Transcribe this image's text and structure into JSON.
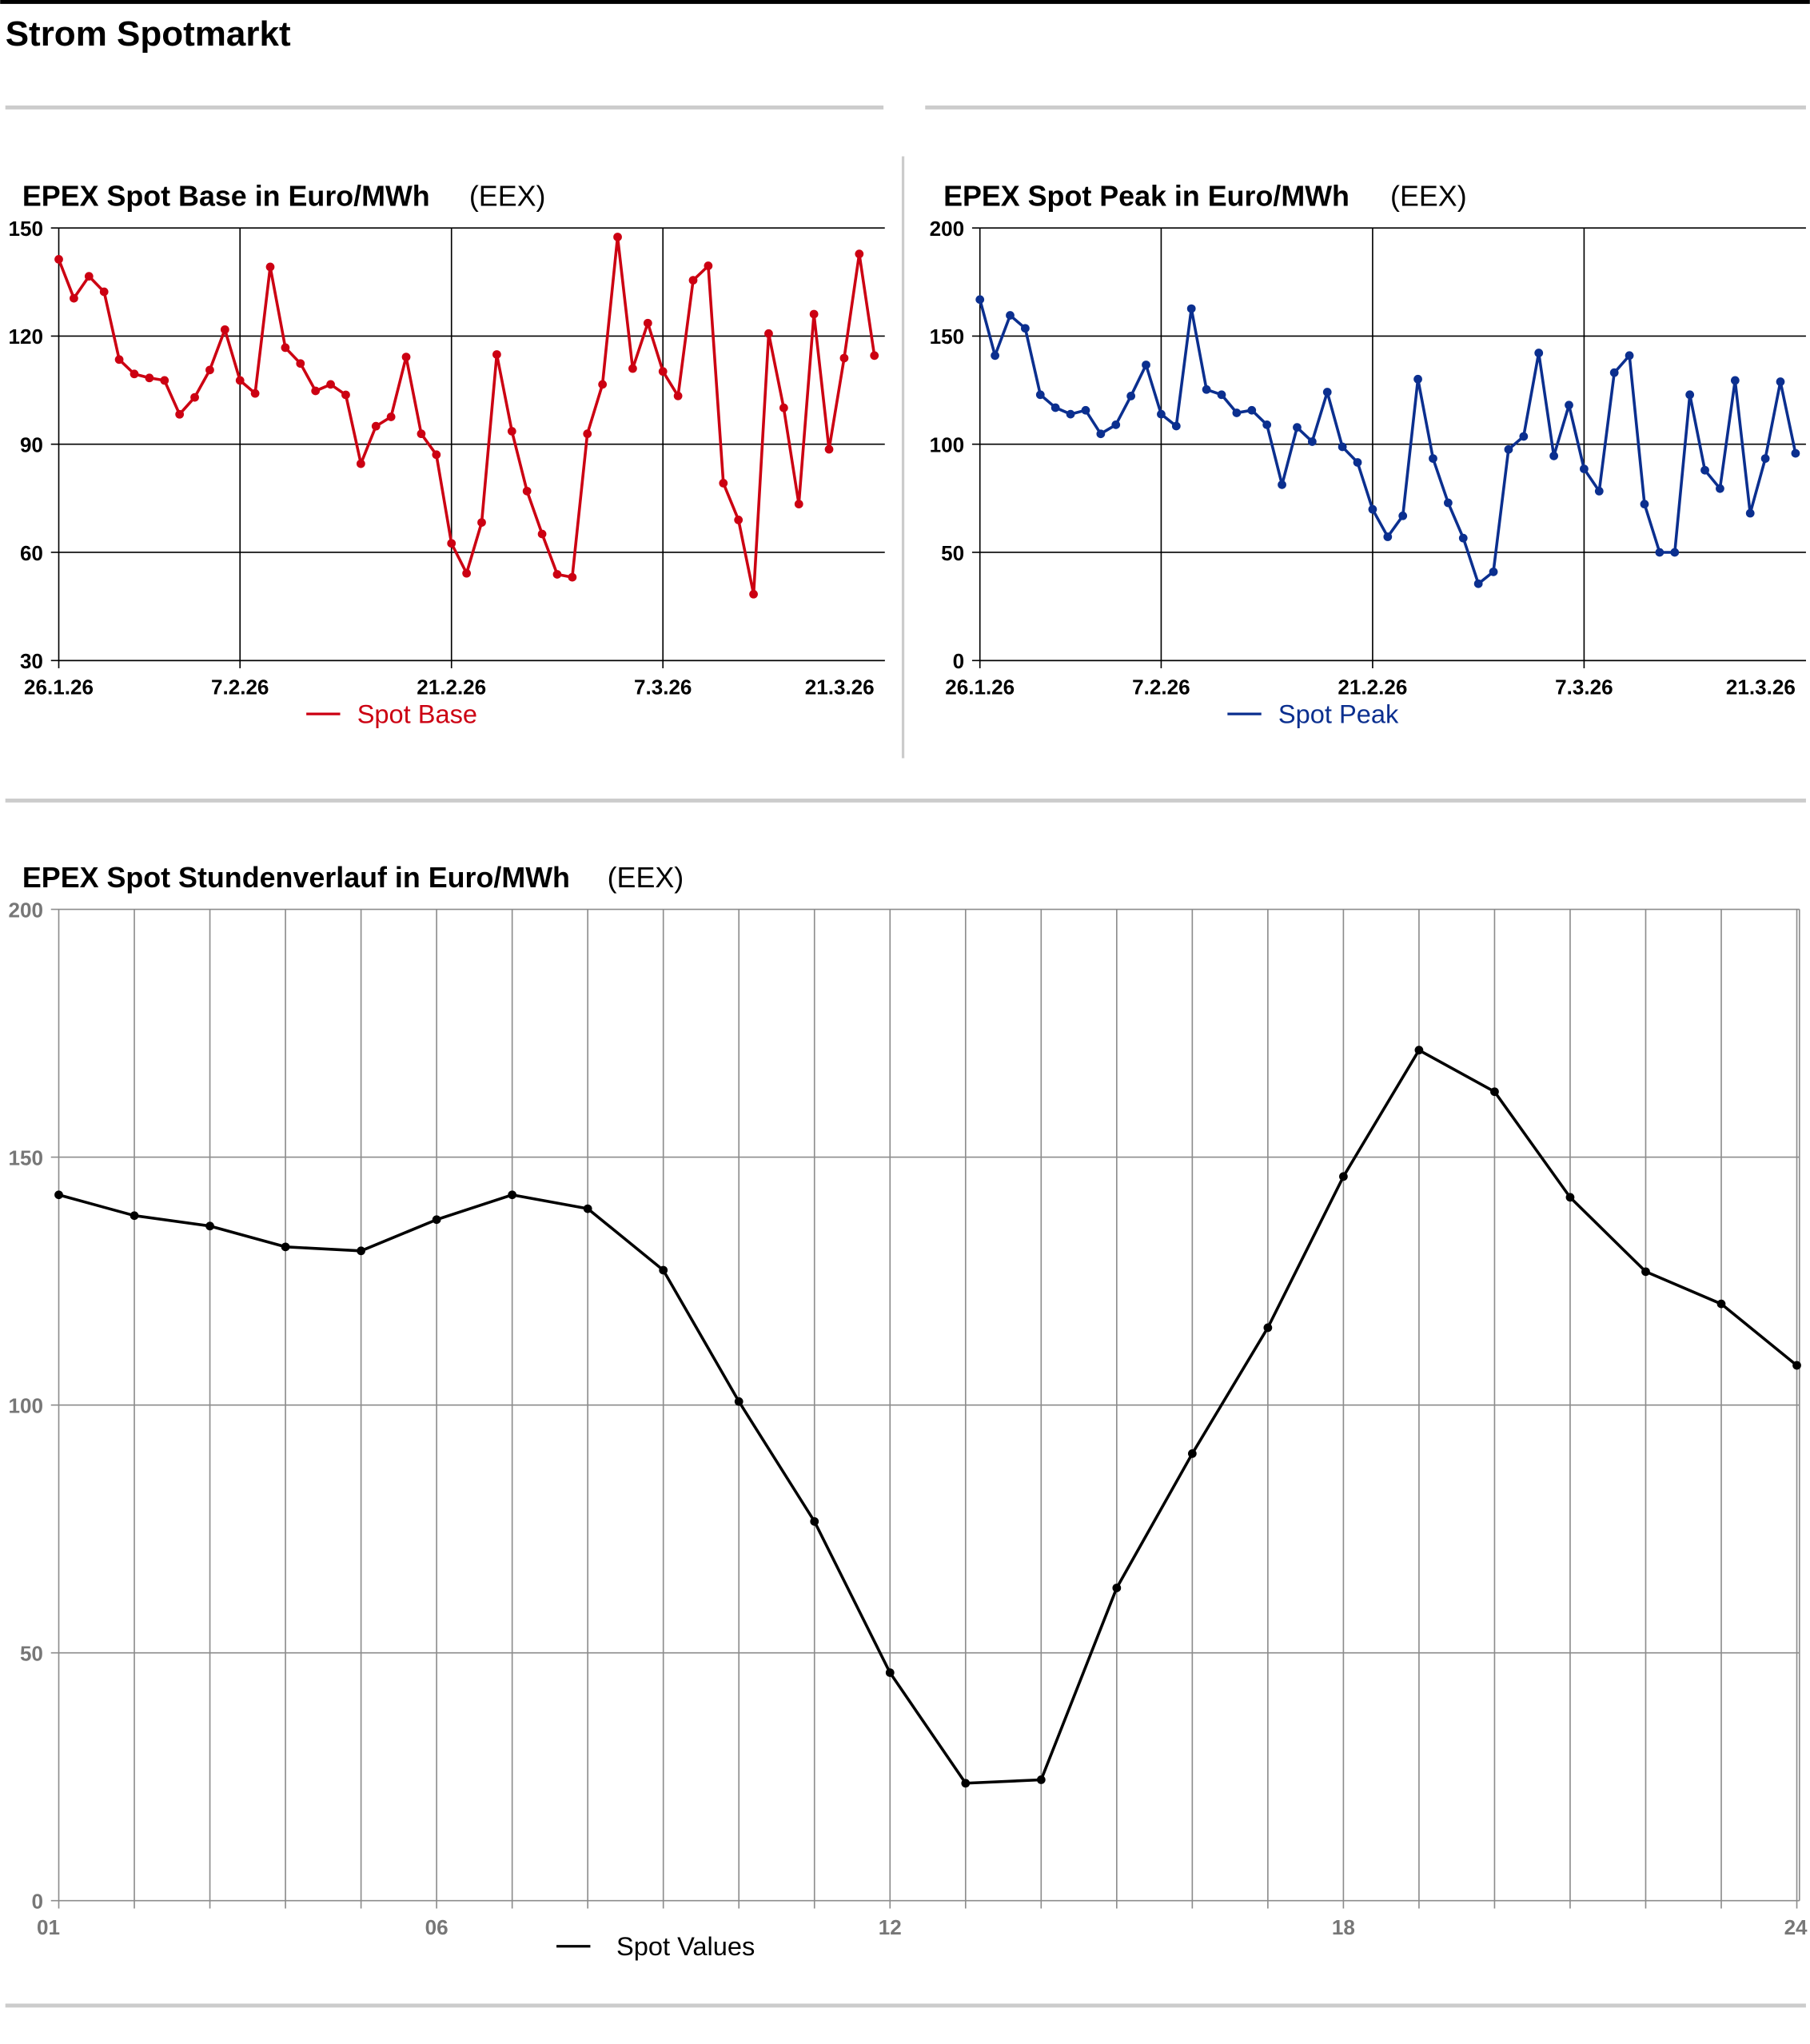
{
  "page_title": "Strom Spotmarkt",
  "colors": {
    "base": "#cc0012",
    "peak": "#0b2f8f",
    "hourly": "#000000",
    "grid": "#000000",
    "grid_light": "#8c8c8c",
    "rule": "#cccccc"
  },
  "chart_data": [
    {
      "id": "base",
      "type": "line",
      "title": "EPEX Spot Base in Euro/MWh",
      "source": "(EEX)",
      "x_start": "26.1.26",
      "x_end": "21.3.26",
      "x_unit": "day",
      "xticks": [
        {
          "label": "26.1.26",
          "day": 0
        },
        {
          "label": "7.2.26",
          "day": 12
        },
        {
          "label": "21.2.26",
          "day": 26
        },
        {
          "label": "7.3.26",
          "day": 40
        },
        {
          "label": "21.3.26",
          "day": 54
        }
      ],
      "yticks": [
        "30",
        "60",
        "90",
        "120",
        "150"
      ],
      "ylim": [
        30,
        150
      ],
      "legend": "Spot Base",
      "legend_position": "bottom-center",
      "series": [
        {
          "name": "Spot Base",
          "values": [
            141.3,
            130.5,
            136.6,
            132.3,
            113.5,
            109.5,
            108.4,
            107.7,
            98.3,
            103.0,
            110.6,
            121.8,
            107.7,
            104.1,
            139.2,
            116.8,
            112.4,
            104.8,
            106.6,
            103.7,
            84.6,
            95.0,
            97.6,
            114.2,
            92.9,
            87.1,
            62.5,
            54.2,
            68.3,
            114.9,
            93.6,
            77.0,
            65.1,
            53.9,
            53.1,
            92.9,
            106.6,
            147.5,
            111.0,
            123.6,
            110.2,
            103.4,
            135.5,
            139.5,
            79.2,
            69.0,
            48.4,
            120.7,
            100.1,
            73.4,
            126.1,
            88.6,
            113.9,
            142.8,
            114.6
          ]
        }
      ]
    },
    {
      "id": "peak",
      "type": "line",
      "title": "EPEX Spot Peak in Euro/MWh",
      "source": "(EEX)",
      "x_start": "26.1.26",
      "x_end": "21.3.26",
      "x_unit": "day",
      "xticks": [
        {
          "label": "26.1.26",
          "day": 0
        },
        {
          "label": "7.2.26",
          "day": 12
        },
        {
          "label": "21.2.26",
          "day": 26
        },
        {
          "label": "7.3.26",
          "day": 40
        },
        {
          "label": "21.3.26",
          "day": 54
        }
      ],
      "yticks": [
        "0",
        "50",
        "100",
        "150",
        "200"
      ],
      "ylim": [
        0,
        200
      ],
      "legend": "Spot Peak",
      "legend_position": "bottom-center",
      "series": [
        {
          "name": "Spot Peak",
          "values": [
            166.9,
            141.0,
            159.6,
            153.6,
            122.9,
            116.9,
            113.9,
            115.7,
            104.8,
            109.0,
            122.3,
            136.7,
            113.9,
            108.4,
            162.7,
            125.3,
            122.9,
            114.5,
            115.7,
            109.0,
            81.3,
            107.8,
            101.2,
            124.1,
            98.8,
            91.6,
            69.9,
            57.2,
            66.9,
            130.1,
            93.4,
            72.9,
            56.6,
            35.5,
            41.0,
            97.6,
            103.6,
            142.2,
            94.6,
            118.1,
            88.6,
            78.3,
            133.1,
            141.0,
            72.3,
            50.0,
            50.0,
            122.9,
            88.0,
            79.5,
            129.5,
            68.1,
            93.4,
            128.9,
            95.8
          ]
        }
      ]
    },
    {
      "id": "hourly",
      "type": "line",
      "title": "EPEX Spot Stundenverlauf in Euro/MWh",
      "source": "(EEX)",
      "x": [
        1,
        2,
        3,
        4,
        5,
        6,
        7,
        8,
        9,
        10,
        11,
        12,
        13,
        14,
        15,
        16,
        17,
        18,
        19,
        20,
        21,
        22,
        23,
        24
      ],
      "xticks": [
        {
          "label": "01",
          "hour": 1
        },
        {
          "label": "06",
          "hour": 6
        },
        {
          "label": "12",
          "hour": 12
        },
        {
          "label": "18",
          "hour": 18
        },
        {
          "label": "24",
          "hour": 24
        }
      ],
      "yticks": [
        "0",
        "50",
        "100",
        "150",
        "200"
      ],
      "ylim": [
        0,
        200
      ],
      "legend": "Spot Values",
      "legend_position": "bottom-center",
      "series": [
        {
          "name": "Spot Values",
          "values": [
            142.4,
            138.2,
            136.1,
            131.9,
            131.1,
            137.4,
            142.4,
            139.6,
            127.2,
            100.7,
            76.5,
            46.0,
            23.7,
            24.4,
            63.1,
            90.2,
            115.6,
            146.1,
            171.6,
            163.2,
            141.9,
            126.9,
            120.4,
            108.0
          ]
        }
      ]
    }
  ]
}
